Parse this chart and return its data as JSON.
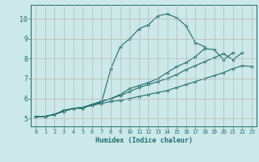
{
  "title": "",
  "xlabel": "Humidex (Indice chaleur)",
  "ylabel": "",
  "bg_color": "#cce8e8",
  "grid_color": "#b8b8b8",
  "line_color": "#1a6e6e",
  "xlim": [
    -0.5,
    23.5
  ],
  "ylim": [
    4.6,
    10.7
  ],
  "xticks": [
    0,
    1,
    2,
    3,
    4,
    5,
    6,
    7,
    8,
    9,
    10,
    11,
    12,
    13,
    14,
    15,
    16,
    17,
    18,
    19,
    20,
    21,
    22,
    23
  ],
  "yticks": [
    5,
    6,
    7,
    8,
    9,
    10
  ],
  "series": [
    [
      5.1,
      5.1,
      5.2,
      5.4,
      5.5,
      5.5,
      5.7,
      5.8,
      7.5,
      8.6,
      9.0,
      9.5,
      9.7,
      10.15,
      10.25,
      10.05,
      9.65,
      8.8,
      8.6,
      null,
      null,
      null,
      null,
      null
    ],
    [
      5.1,
      5.1,
      5.2,
      5.4,
      5.5,
      5.55,
      5.7,
      5.85,
      6.0,
      6.2,
      6.5,
      6.65,
      6.8,
      7.0,
      7.3,
      7.6,
      7.8,
      8.1,
      8.5,
      8.45,
      7.95,
      8.3,
      null,
      null
    ],
    [
      5.1,
      5.1,
      5.2,
      5.4,
      5.5,
      5.55,
      5.7,
      5.85,
      6.0,
      6.15,
      6.35,
      6.55,
      6.7,
      6.85,
      7.0,
      7.2,
      7.45,
      7.65,
      7.85,
      8.05,
      8.25,
      7.95,
      8.3,
      null
    ],
    [
      5.1,
      5.1,
      5.2,
      5.35,
      5.5,
      5.55,
      5.65,
      5.75,
      5.85,
      5.9,
      6.0,
      6.1,
      6.2,
      6.3,
      6.4,
      6.55,
      6.7,
      6.85,
      7.0,
      7.15,
      7.3,
      7.5,
      7.65,
      7.6
    ]
  ]
}
